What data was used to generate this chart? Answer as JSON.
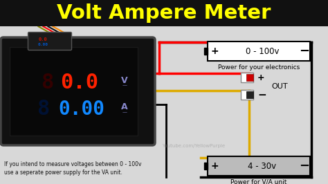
{
  "title": "Volt Ampere Meter",
  "title_color": "#FFFF00",
  "bg_color": "#111111",
  "diagram_bg": "#d8d8d8",
  "meter_display_red": "#ff2200",
  "meter_display_blue": "#1188ff",
  "top_battery_label": "0 - 100v",
  "top_battery_sublabel": "Power for your electronics",
  "bottom_battery_label": "4 - 30v",
  "bottom_battery_sublabel": "Power for V/A unit",
  "out_label": "OUT",
  "watermark": "Youtube.com/YellowPurple",
  "footnote_line1": "If you intend to measure voltages between 0 - 100v",
  "footnote_line2": "use a seperate power supply for the VA unit."
}
